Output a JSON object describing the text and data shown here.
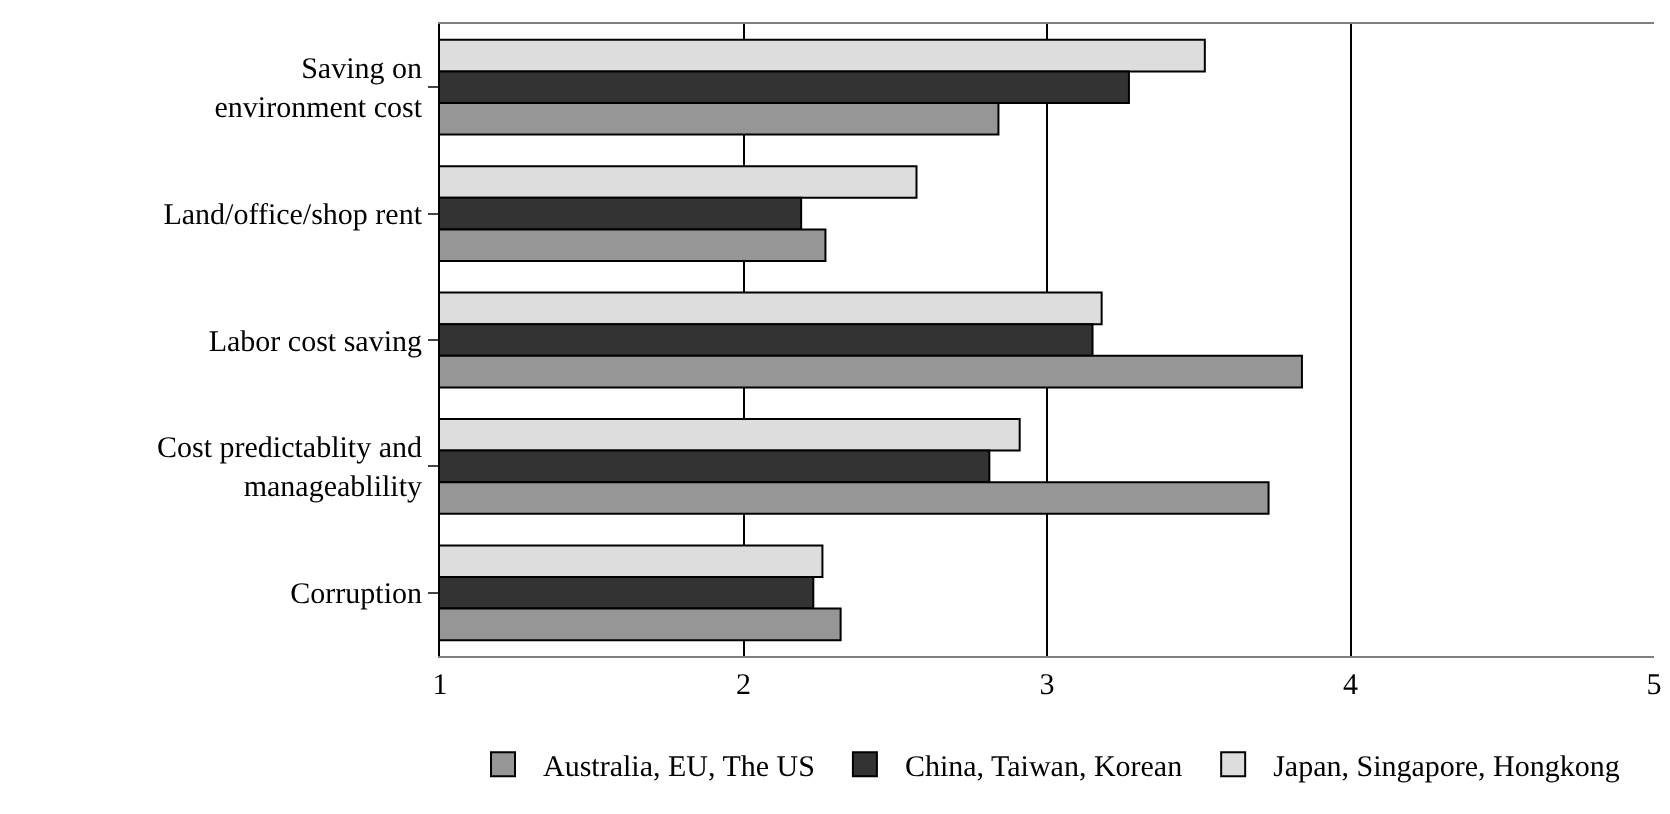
{
  "chart_data": {
    "type": "bar",
    "orientation": "horizontal",
    "categories": [
      "Saving on\nenvironment cost",
      "Land/office/shop rent",
      "Labor cost saving",
      "Cost predictablity and\nmanageablility",
      "Corruption"
    ],
    "series": [
      {
        "name": "Australia, EU, The US",
        "color": "#969696",
        "values": [
          2.84,
          2.27,
          3.84,
          3.73,
          2.32
        ]
      },
      {
        "name": "China, Taiwan, Korean",
        "color": "#333333",
        "values": [
          3.27,
          2.19,
          3.15,
          2.81,
          2.23
        ]
      },
      {
        "name": "Japan, Singapore, Hongkong",
        "color": "#dddddd",
        "values": [
          3.52,
          2.57,
          3.18,
          2.91,
          2.26
        ]
      }
    ],
    "xlim": [
      1,
      5
    ],
    "xticks": [
      1,
      2,
      3,
      4,
      5
    ],
    "grid": "x",
    "legend": "bottom"
  }
}
